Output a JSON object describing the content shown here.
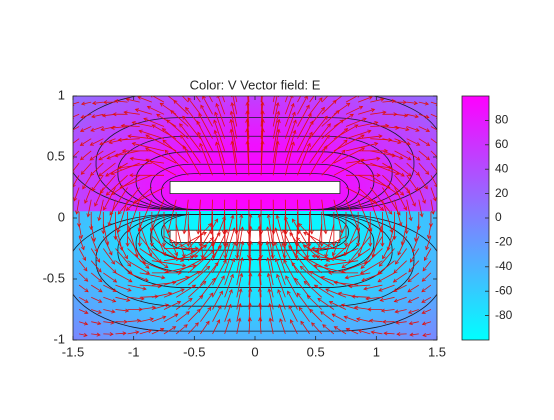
{
  "chart_data": {
    "type": "field",
    "title": "Color: V  Vector field: E",
    "xlim": [
      -1.5,
      1.5
    ],
    "ylim": [
      -1,
      1
    ],
    "xticks": [
      -1.5,
      -1,
      -0.5,
      0,
      0.5,
      1,
      1.5
    ],
    "yticks": [
      -1,
      -0.5,
      0,
      0.5,
      1
    ],
    "clim": [
      -100,
      100
    ],
    "cticks": [
      -80,
      -60,
      -40,
      -20,
      0,
      20,
      40,
      60,
      80
    ],
    "colormap": [
      "#00ffff",
      "#ff00ff"
    ],
    "plates": [
      {
        "x": [
          -0.7,
          0.7
        ],
        "y": [
          0.2,
          0.3
        ],
        "potential": 100
      },
      {
        "x": [
          -0.7,
          0.7
        ],
        "y": [
          -0.2,
          -0.1
        ],
        "potential": -100
      }
    ]
  }
}
